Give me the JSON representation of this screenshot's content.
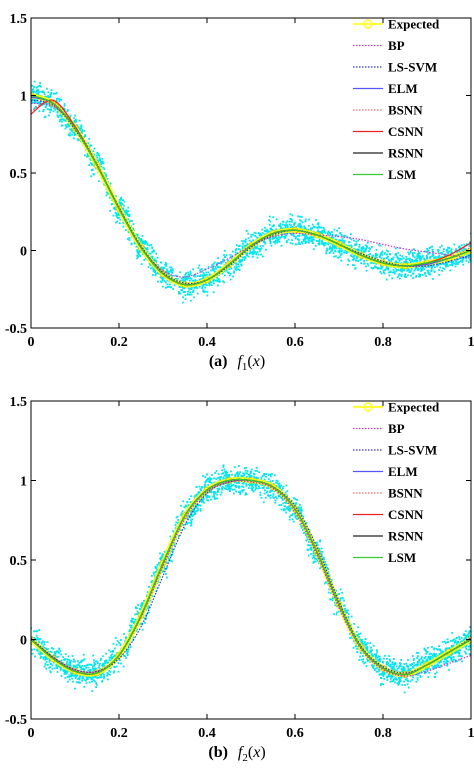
{
  "chart_data": [
    {
      "type": "line",
      "panel_label": "(a)",
      "caption_func": "f",
      "caption_sub": "1",
      "caption_arg": "x",
      "xlim": [
        0,
        1
      ],
      "ylim": [
        -0.5,
        1.5
      ],
      "xticks": [
        "0",
        "0.2",
        "0.4",
        "0.6",
        "0.8",
        "1"
      ],
      "yticks": [
        "-0.5",
        "0",
        "0.5",
        "1",
        "1.5"
      ],
      "legend_position": "top-right",
      "noisy_samples_color": "#00e5ee",
      "x": [
        0,
        0.05,
        0.1,
        0.15,
        0.2,
        0.25,
        0.3,
        0.35,
        0.4,
        0.45,
        0.5,
        0.55,
        0.6,
        0.65,
        0.7,
        0.75,
        0.8,
        0.85,
        0.9,
        0.95,
        1
      ],
      "series": [
        {
          "name": "Expected",
          "color": "#ffff00",
          "style": "marker",
          "values": [
            1.0,
            0.95,
            0.79,
            0.55,
            0.27,
            0.02,
            -0.15,
            -0.22,
            -0.19,
            -0.09,
            0.03,
            0.11,
            0.13,
            0.1,
            0.04,
            -0.03,
            -0.08,
            -0.1,
            -0.08,
            -0.05,
            0.0
          ]
        },
        {
          "name": "BP",
          "color": "#cc33cc",
          "style": "dotted",
          "values": [
            0.95,
            0.93,
            0.8,
            0.56,
            0.27,
            0.02,
            -0.13,
            -0.17,
            -0.12,
            -0.05,
            0.03,
            0.09,
            0.11,
            0.1,
            0.09,
            0.07,
            0.04,
            0.01,
            -0.01,
            -0.03,
            -0.05
          ]
        },
        {
          "name": "LS-SVM",
          "color": "#3333cc",
          "style": "dotted",
          "values": [
            0.97,
            0.94,
            0.78,
            0.55,
            0.28,
            0.03,
            -0.14,
            -0.21,
            -0.19,
            -0.1,
            0.02,
            0.1,
            0.13,
            0.1,
            0.04,
            -0.02,
            -0.07,
            -0.1,
            -0.1,
            -0.07,
            -0.03
          ]
        },
        {
          "name": "ELM",
          "color": "#5555ff",
          "style": "solid",
          "values": [
            0.99,
            0.95,
            0.79,
            0.55,
            0.27,
            0.02,
            -0.15,
            -0.22,
            -0.19,
            -0.09,
            0.03,
            0.11,
            0.13,
            0.1,
            0.04,
            -0.03,
            -0.08,
            -0.1,
            -0.09,
            -0.05,
            0.0
          ]
        },
        {
          "name": "BSNN",
          "color": "#ff6666",
          "style": "dotted",
          "values": [
            0.9,
            0.96,
            0.8,
            0.55,
            0.27,
            0.02,
            -0.15,
            -0.22,
            -0.19,
            -0.09,
            0.03,
            0.11,
            0.13,
            0.1,
            0.04,
            -0.03,
            -0.08,
            -0.1,
            -0.08,
            -0.05,
            0.02
          ]
        },
        {
          "name": "CSNN",
          "color": "#ee2222",
          "style": "solid",
          "values": [
            0.88,
            0.97,
            0.8,
            0.55,
            0.27,
            0.02,
            -0.15,
            -0.22,
            -0.19,
            -0.09,
            0.03,
            0.11,
            0.13,
            0.1,
            0.04,
            -0.03,
            -0.08,
            -0.1,
            -0.08,
            -0.03,
            0.05
          ]
        },
        {
          "name": "RSNN",
          "color": "#222222",
          "style": "solid",
          "values": [
            1.0,
            0.95,
            0.79,
            0.55,
            0.27,
            0.02,
            -0.15,
            -0.22,
            -0.19,
            -0.09,
            0.03,
            0.11,
            0.13,
            0.1,
            0.04,
            -0.03,
            -0.08,
            -0.1,
            -0.08,
            -0.05,
            0.0
          ]
        },
        {
          "name": "LSM",
          "color": "#33cc33",
          "style": "solid",
          "values": [
            1.0,
            0.95,
            0.79,
            0.55,
            0.27,
            0.02,
            -0.15,
            -0.22,
            -0.19,
            -0.09,
            0.03,
            0.11,
            0.13,
            0.1,
            0.04,
            -0.03,
            -0.08,
            -0.1,
            -0.08,
            -0.05,
            0.0
          ]
        }
      ]
    },
    {
      "type": "line",
      "panel_label": "(b)",
      "caption_func": "f",
      "caption_sub": "2",
      "caption_arg": "x",
      "xlim": [
        0,
        1
      ],
      "ylim": [
        -0.5,
        1.5
      ],
      "xticks": [
        "0",
        "0.2",
        "0.4",
        "0.6",
        "0.8",
        "1"
      ],
      "yticks": [
        "-0.5",
        "0",
        "0.5",
        "1",
        "1.5"
      ],
      "legend_position": "top-right",
      "noisy_samples_color": "#00e5ee",
      "x": [
        0,
        0.05,
        0.1,
        0.15,
        0.2,
        0.25,
        0.3,
        0.35,
        0.4,
        0.45,
        0.5,
        0.55,
        0.6,
        0.65,
        0.7,
        0.75,
        0.8,
        0.85,
        0.9,
        0.95,
        1
      ],
      "series": [
        {
          "name": "Expected",
          "color": "#ffff00",
          "style": "marker",
          "values": [
            0.0,
            -0.12,
            -0.2,
            -0.21,
            -0.1,
            0.15,
            0.48,
            0.78,
            0.94,
            1.0,
            1.0,
            0.96,
            0.82,
            0.55,
            0.22,
            -0.05,
            -0.18,
            -0.22,
            -0.16,
            -0.08,
            0.0
          ]
        },
        {
          "name": "BP",
          "color": "#cc33cc",
          "style": "dotted",
          "values": [
            0.0,
            -0.11,
            -0.19,
            -0.2,
            -0.1,
            0.14,
            0.46,
            0.76,
            0.93,
            0.99,
            0.99,
            0.95,
            0.8,
            0.53,
            0.2,
            -0.06,
            -0.19,
            -0.23,
            -0.2,
            -0.15,
            -0.1
          ]
        },
        {
          "name": "LS-SVM",
          "color": "#3333cc",
          "style": "dotted",
          "values": [
            0.01,
            -0.11,
            -0.19,
            -0.2,
            -0.12,
            0.08,
            0.4,
            0.72,
            0.92,
            0.99,
            1.0,
            0.96,
            0.84,
            0.58,
            0.24,
            -0.04,
            -0.17,
            -0.21,
            -0.16,
            -0.08,
            0.01
          ]
        },
        {
          "name": "ELM",
          "color": "#5555ff",
          "style": "solid",
          "values": [
            0.0,
            -0.12,
            -0.2,
            -0.21,
            -0.1,
            0.15,
            0.48,
            0.78,
            0.94,
            1.0,
            1.0,
            0.96,
            0.82,
            0.55,
            0.22,
            -0.05,
            -0.18,
            -0.22,
            -0.16,
            -0.08,
            0.0
          ]
        },
        {
          "name": "BSNN",
          "color": "#ff6666",
          "style": "dotted",
          "values": [
            0.0,
            -0.12,
            -0.2,
            -0.21,
            -0.1,
            0.15,
            0.48,
            0.78,
            0.94,
            1.0,
            1.0,
            0.96,
            0.82,
            0.55,
            0.22,
            -0.05,
            -0.18,
            -0.22,
            -0.16,
            -0.08,
            0.0
          ]
        },
        {
          "name": "CSNN",
          "color": "#ee2222",
          "style": "solid",
          "values": [
            0.0,
            -0.12,
            -0.2,
            -0.21,
            -0.1,
            0.15,
            0.48,
            0.78,
            0.94,
            1.0,
            1.0,
            0.96,
            0.82,
            0.55,
            0.22,
            -0.05,
            -0.18,
            -0.22,
            -0.16,
            -0.08,
            0.0
          ]
        },
        {
          "name": "RSNN",
          "color": "#222222",
          "style": "solid",
          "values": [
            0.0,
            -0.12,
            -0.2,
            -0.21,
            -0.1,
            0.15,
            0.48,
            0.78,
            0.94,
            1.0,
            1.0,
            0.96,
            0.82,
            0.55,
            0.22,
            -0.05,
            -0.18,
            -0.22,
            -0.16,
            -0.08,
            0.0
          ]
        },
        {
          "name": "LSM",
          "color": "#33cc33",
          "style": "solid",
          "values": [
            0.0,
            -0.12,
            -0.2,
            -0.21,
            -0.1,
            0.15,
            0.48,
            0.78,
            0.94,
            1.0,
            1.0,
            0.96,
            0.82,
            0.55,
            0.22,
            -0.05,
            -0.18,
            -0.22,
            -0.16,
            -0.08,
            0.0
          ]
        }
      ]
    }
  ]
}
